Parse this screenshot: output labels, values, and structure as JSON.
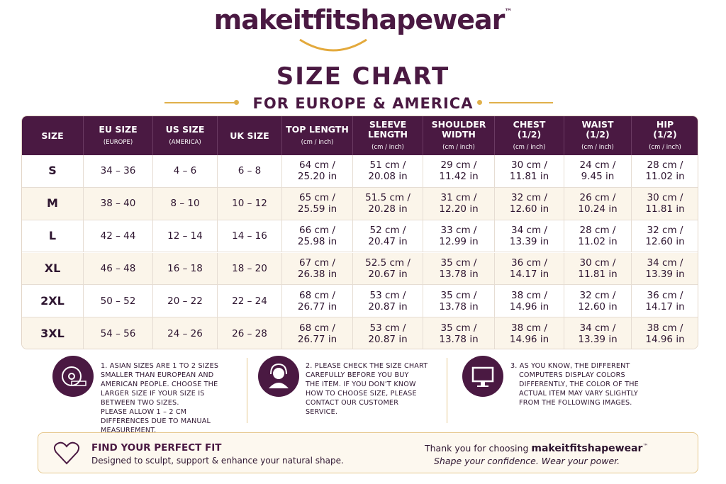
{
  "brand": {
    "name": "makeitfitshapewear",
    "mark": "™"
  },
  "title": "SIZE CHART",
  "subtitle": "FOR EUROPE & AMERICA",
  "table": {
    "headers": [
      {
        "lines": [
          "SIZE"
        ]
      },
      {
        "lines": [
          "EU SIZE"
        ],
        "unit": "(EUROPE)"
      },
      {
        "lines": [
          "US SIZE"
        ],
        "unit": "(AMERICA)"
      },
      {
        "lines": [
          "UK SIZE"
        ]
      },
      {
        "lines": [
          "TOP LENGTH"
        ],
        "unit": "(cm / inch)"
      },
      {
        "lines": [
          "SLEEVE",
          "LENGTH"
        ],
        "unit": "(cm / inch)"
      },
      {
        "lines": [
          "SHOULDER",
          "WIDTH"
        ],
        "unit": "(cm / inch)"
      },
      {
        "lines": [
          "CHEST",
          "(1/2)"
        ],
        "unit": "(cm / inch)"
      },
      {
        "lines": [
          "WAIST",
          "(1/2)"
        ],
        "unit": "(cm / inch)"
      },
      {
        "lines": [
          "HIP",
          "(1/2)"
        ],
        "unit": "(cm / inch)"
      }
    ],
    "rows": [
      [
        "S",
        "34 – 36",
        "4 – 6",
        "6 – 8",
        [
          "64 cm /",
          "25.20 in"
        ],
        [
          "51 cm /",
          "20.08 in"
        ],
        [
          "29 cm /",
          "11.42 in"
        ],
        [
          "30 cm /",
          "11.81 in"
        ],
        [
          "24 cm /",
          "9.45 in"
        ],
        [
          "28 cm /",
          "11.02 in"
        ]
      ],
      [
        "M",
        "38 – 40",
        "8 – 10",
        "10 – 12",
        [
          "65 cm /",
          "25.59 in"
        ],
        [
          "51.5 cm /",
          "20.28 in"
        ],
        [
          "31 cm /",
          "12.20 in"
        ],
        [
          "32 cm /",
          "12.60 in"
        ],
        [
          "26 cm /",
          "10.24 in"
        ],
        [
          "30 cm /",
          "11.81 in"
        ]
      ],
      [
        "L",
        "42 – 44",
        "12 – 14",
        "14 – 16",
        [
          "66 cm /",
          "25.98 in"
        ],
        [
          "52 cm /",
          "20.47 in"
        ],
        [
          "33 cm /",
          "12.99 in"
        ],
        [
          "34 cm /",
          "13.39 in"
        ],
        [
          "28 cm /",
          "11.02 in"
        ],
        [
          "32 cm /",
          "12.60 in"
        ]
      ],
      [
        "XL",
        "46 – 48",
        "16 – 18",
        "18 – 20",
        [
          "67 cm /",
          "26.38 in"
        ],
        [
          "52.5 cm /",
          "20.67 in"
        ],
        [
          "35 cm /",
          "13.78 in"
        ],
        [
          "36 cm /",
          "14.17 in"
        ],
        [
          "30 cm /",
          "11.81 in"
        ],
        [
          "34 cm /",
          "13.39 in"
        ]
      ],
      [
        "2XL",
        "50 – 52",
        "20 – 22",
        "22 – 24",
        [
          "68 cm /",
          "26.77 in"
        ],
        [
          "53 cm /",
          "20.87 in"
        ],
        [
          "35 cm /",
          "13.78 in"
        ],
        [
          "38 cm /",
          "14.96 in"
        ],
        [
          "32 cm /",
          "12.60 in"
        ],
        [
          "36 cm /",
          "14.17 in"
        ]
      ],
      [
        "3XL",
        "54 – 56",
        "24 – 26",
        "26 – 28",
        [
          "68 cm /",
          "26.77 in"
        ],
        [
          "53 cm /",
          "20.87 in"
        ],
        [
          "35 cm /",
          "13.78 in"
        ],
        [
          "38 cm /",
          "14.96 in"
        ],
        [
          "34 cm /",
          "13.39 in"
        ],
        [
          "38 cm /",
          "14.96 in"
        ]
      ]
    ]
  },
  "notes": [
    [
      "1. ASIAN SIZES ARE 1 TO 2 SIZES",
      "SMALLER THAN EUROPEAN AND",
      "AMERICAN PEOPLE. CHOOSE THE",
      "LARGER SIZE IF YOUR SIZE IS",
      "BETWEEN TWO SIZES.",
      "PLEASE ALLOW 1 – 2 CM",
      "DIFFERENCES DUE TO MANUAL",
      "MEASUREMENT."
    ],
    [
      "2. PLEASE CHECK THE SIZE CHART",
      "CAREFULLY BEFORE YOU BUY",
      "THE ITEM. IF YOU DON’T KNOW",
      "HOW TO CHOOSE SIZE, PLEASE",
      "CONTACT OUR CUSTOMER",
      "SERVICE."
    ],
    [
      "3. AS YOU KNOW, THE DIFFERENT",
      "COMPUTERS DISPLAY COLORS",
      "DIFFERENTLY, THE COLOR OF THE",
      "ACTUAL ITEM MAY VARY SLIGHTLY",
      "FROM THE FOLLOWING IMAGES."
    ]
  ],
  "footer": {
    "heading": "FIND YOUR PERFECT FIT",
    "text": "Designed to sculpt, support & enhance your natural shape.",
    "thanks": "Thank you for choosing",
    "brand": "makeitfitshapewear",
    "mark": "™",
    "slogan": "Shape your confidence. Wear your power."
  }
}
